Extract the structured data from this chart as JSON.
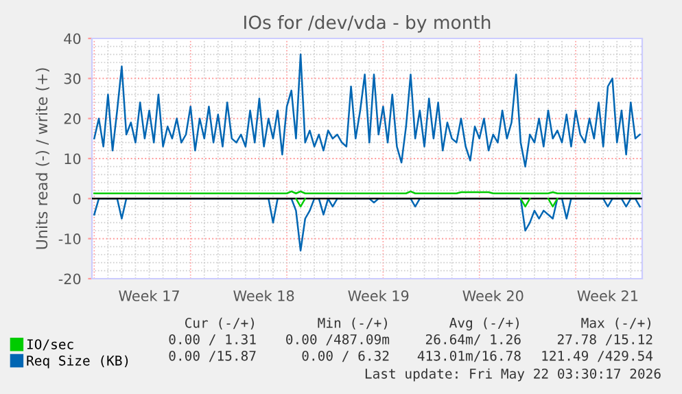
{
  "chart_data": {
    "type": "line",
    "title": "IOs for /dev/vda - by month",
    "ylabel": "Units read (-) / write (+)",
    "categories": [
      null,
      null,
      null,
      null,
      null,
      null,
      null,
      null,
      null,
      null,
      null,
      null,
      "Week 17",
      null,
      null,
      null,
      null,
      null,
      null,
      null,
      null,
      null,
      null,
      null,
      null,
      null,
      null,
      null,
      null,
      null,
      null,
      null,
      null,
      null,
      null,
      null,
      null,
      "Week 18",
      null,
      null,
      null,
      null,
      null,
      null,
      null,
      null,
      null,
      null,
      null,
      null,
      null,
      null,
      null,
      null,
      null,
      null,
      null,
      null,
      null,
      null,
      null,
      null,
      "Week 19",
      null,
      null,
      null,
      null,
      null,
      null,
      null,
      null,
      null,
      null,
      null,
      null,
      null,
      null,
      null,
      null,
      null,
      null,
      null,
      null,
      null,
      null,
      null,
      null,
      "Week 20",
      null,
      null,
      null,
      null,
      null,
      null,
      null,
      null,
      null,
      null,
      null,
      null,
      null,
      null,
      null,
      null,
      null,
      null,
      null,
      null,
      null,
      null,
      null,
      null,
      "Week 21",
      null,
      null,
      null,
      null,
      null,
      null,
      null
    ],
    "ylim": [
      -20,
      40
    ],
    "yticks": [
      -20,
      -10,
      0,
      10,
      20,
      30,
      40
    ],
    "grid": true,
    "legend": "bottom",
    "ref_lines": [
      {
        "axis": "y",
        "value": 0,
        "color": "#000000"
      }
    ],
    "series": [
      {
        "color": "#0066b3",
        "values": [
          -4,
          0,
          0,
          0,
          0,
          0,
          -5,
          0,
          0,
          0,
          0,
          0,
          0,
          0,
          0,
          0,
          0,
          0,
          0,
          0,
          0,
          0,
          0,
          0,
          0,
          0,
          0,
          0,
          0,
          0,
          0,
          0,
          0,
          0,
          0,
          0,
          0,
          0,
          0,
          -6,
          0,
          0,
          0,
          0,
          -3,
          -13,
          -5,
          -3,
          0,
          0,
          -4,
          0,
          -2,
          0,
          0,
          0,
          0,
          0,
          0,
          0,
          0,
          -1,
          0,
          0,
          0,
          0,
          0,
          0,
          0,
          0,
          -2,
          0,
          0,
          0,
          0,
          0,
          0,
          0,
          0,
          0,
          0,
          0,
          0,
          0,
          0,
          0,
          0,
          0,
          0,
          0,
          0,
          0,
          0,
          0,
          -8,
          -6,
          -3,
          -5,
          -3,
          -4,
          -5,
          0,
          0,
          -5,
          0,
          0,
          0,
          0,
          0,
          0,
          0,
          0,
          -2,
          0,
          0,
          0,
          -2,
          0,
          0,
          -2
        ]
      },
      {
        "name": "Req Size (KB)",
        "color": "#0066b3",
        "values": [
          15,
          20,
          13,
          26,
          12,
          22,
          33,
          16,
          19,
          14,
          24,
          15,
          22,
          14,
          26,
          13,
          18,
          15,
          20,
          14,
          16,
          23,
          12,
          20,
          15,
          23,
          14,
          21,
          13,
          24,
          15,
          14,
          16,
          13,
          22,
          14,
          25,
          13,
          20,
          15,
          22,
          11,
          23,
          27,
          15,
          36,
          14,
          17,
          13,
          16,
          12,
          17,
          15,
          16,
          14,
          13,
          28,
          15,
          22,
          31,
          14,
          31,
          16,
          23,
          14,
          26,
          13,
          9,
          18,
          31,
          15,
          22,
          13,
          25,
          15,
          24,
          12,
          19,
          15,
          14,
          20,
          13,
          9.5,
          18,
          15,
          20,
          12,
          16,
          14,
          22,
          15,
          19,
          31,
          14,
          8,
          16,
          14,
          20,
          13,
          22,
          15,
          17,
          14,
          21,
          13,
          22,
          16,
          14,
          20,
          15,
          24,
          13,
          28,
          30,
          14,
          22,
          11,
          24,
          15,
          16
        ]
      },
      {
        "color": "#00cc00",
        "values": [
          null,
          null,
          null,
          null,
          null,
          null,
          null,
          null,
          null,
          null,
          null,
          null,
          null,
          null,
          null,
          null,
          null,
          null,
          null,
          null,
          null,
          null,
          null,
          null,
          null,
          null,
          null,
          null,
          null,
          null,
          null,
          null,
          null,
          null,
          null,
          null,
          null,
          null,
          null,
          null,
          null,
          null,
          null,
          null,
          0,
          -2,
          0,
          null,
          null,
          null,
          null,
          null,
          null,
          null,
          null,
          null,
          null,
          null,
          null,
          null,
          null,
          null,
          null,
          null,
          null,
          null,
          null,
          null,
          null,
          null,
          null,
          null,
          null,
          null,
          null,
          null,
          null,
          null,
          null,
          null,
          null,
          null,
          null,
          null,
          null,
          null,
          null,
          null,
          null,
          null,
          null,
          null,
          null,
          0,
          -2,
          0,
          null,
          null,
          null,
          0,
          -2,
          0,
          null,
          null,
          null,
          null,
          null,
          null,
          null,
          null,
          null,
          null,
          null,
          null,
          null,
          null,
          null,
          null,
          null,
          null
        ]
      },
      {
        "name": "IO/sec",
        "color": "#00cc00",
        "values": [
          1.3,
          1.3,
          1.3,
          1.3,
          1.3,
          1.3,
          1.3,
          1.3,
          1.3,
          1.3,
          1.3,
          1.3,
          1.3,
          1.3,
          1.3,
          1.3,
          1.3,
          1.3,
          1.3,
          1.3,
          1.3,
          1.3,
          1.3,
          1.3,
          1.3,
          1.3,
          1.3,
          1.3,
          1.3,
          1.3,
          1.3,
          1.3,
          1.3,
          1.3,
          1.3,
          1.3,
          1.3,
          1.3,
          1.3,
          1.3,
          1.3,
          1.3,
          1.3,
          1.8,
          1.3,
          1.8,
          1.3,
          1.3,
          1.3,
          1.3,
          1.3,
          1.3,
          1.3,
          1.3,
          1.3,
          1.3,
          1.3,
          1.3,
          1.3,
          1.3,
          1.3,
          1.3,
          1.3,
          1.3,
          1.3,
          1.3,
          1.3,
          1.3,
          1.3,
          1.8,
          1.3,
          1.3,
          1.3,
          1.3,
          1.3,
          1.3,
          1.3,
          1.3,
          1.3,
          1.3,
          1.6,
          1.6,
          1.6,
          1.6,
          1.6,
          1.6,
          1.6,
          1.3,
          1.3,
          1.3,
          1.3,
          1.3,
          1.3,
          1.3,
          1.3,
          1.3,
          1.3,
          1.3,
          1.3,
          1.3,
          1.6,
          1.3,
          1.3,
          1.3,
          1.3,
          1.3,
          1.3,
          1.3,
          1.3,
          1.3,
          1.3,
          1.3,
          1.3,
          1.3,
          1.3,
          1.3,
          1.3,
          1.3,
          1.3,
          1.3
        ]
      }
    ],
    "annotations": [
      "Cur (-/+)",
      "Min (-/+)",
      "Avg (-/+)",
      "Max (-/+)",
      "0.00 / 1.31",
      "0.00 /487.09m",
      "26.64m/ 1.26",
      "27.78 /15.12",
      "0.00 /15.87",
      "0.00 / 6.32",
      "413.01m/16.78",
      "121.49 /429.54",
      "Last update: Fri May 22 03:30:17 2026"
    ]
  }
}
